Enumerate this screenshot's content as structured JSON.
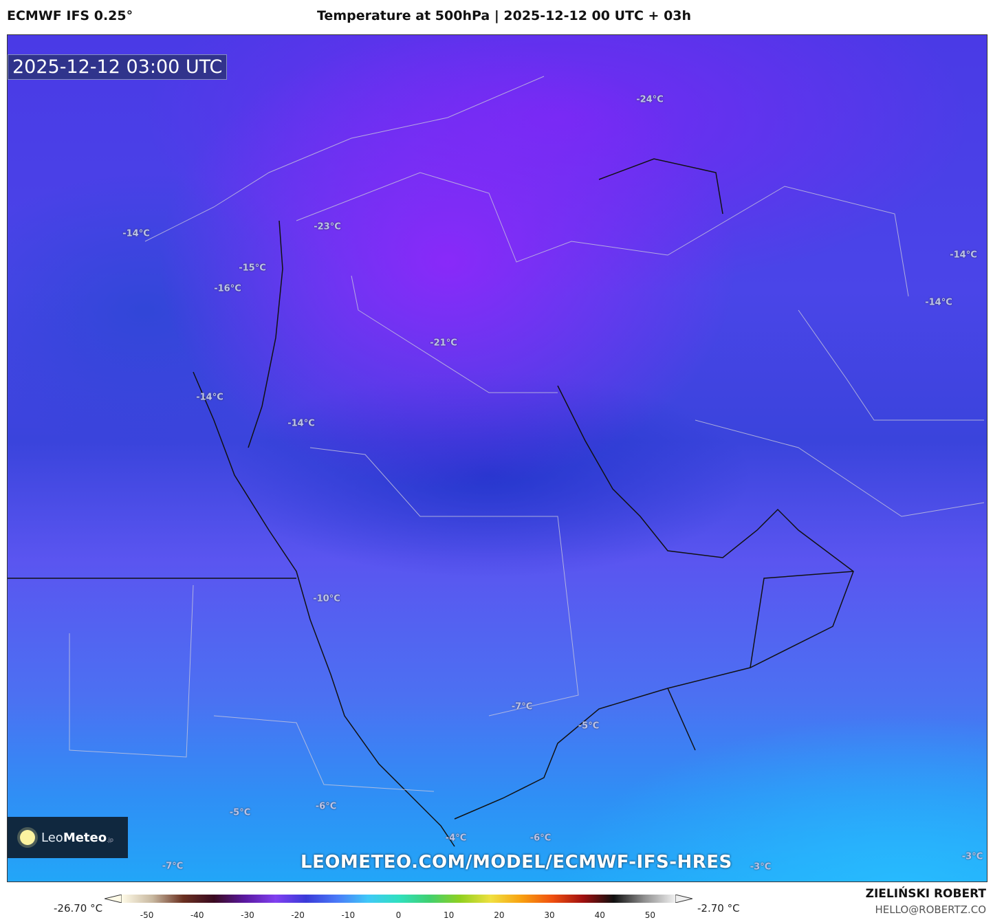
{
  "header": {
    "model": "ECMWF IFS 0.25°",
    "title": "Temperature at 500hPa | 2025-12-12 00 UTC + 03h"
  },
  "map": {
    "valid_time": "2025-12-12 03:00 UTC",
    "url": "LEOMETEO.COM/MODEL/ECMWF-IFS-HRES",
    "logo": {
      "name": "Leo",
      "bold": "Meteo",
      "suffix": ".jp"
    },
    "labels": [
      "-24°C",
      "-23°C",
      "-14°C",
      "-15°C",
      "-16°C",
      "-14°C",
      "-14°C",
      "-21°C",
      "-14°C",
      "-14°C",
      "-10°C",
      "-7°C",
      "-5°C",
      "-6°C",
      "-5°C",
      "-4°C",
      "-6°C",
      "-7°C",
      "-3°C",
      "-3°C"
    ]
  },
  "legend": {
    "min": "-26.70 °C",
    "max": "-2.70 °C",
    "ticks": [
      "-50",
      "-40",
      "-30",
      "-20",
      "-10",
      "0",
      "10",
      "20",
      "30",
      "40",
      "50"
    ],
    "colors": [
      "#fffbe8",
      "#c8b8a0",
      "#6a3020",
      "#3a0a20",
      "#5a18a0",
      "#8040f0",
      "#3a3ad8",
      "#4a7af8",
      "#40c8f8",
      "#30e0c0",
      "#40d070",
      "#90d020",
      "#f0e040",
      "#f8a010",
      "#f05010",
      "#a01010",
      "#101010",
      "#909090",
      "#f0f0f0"
    ]
  },
  "footer": {
    "author": "ZIELIŃSKI ROBERT",
    "email": "HELLO@ROBERTZ.CO"
  }
}
